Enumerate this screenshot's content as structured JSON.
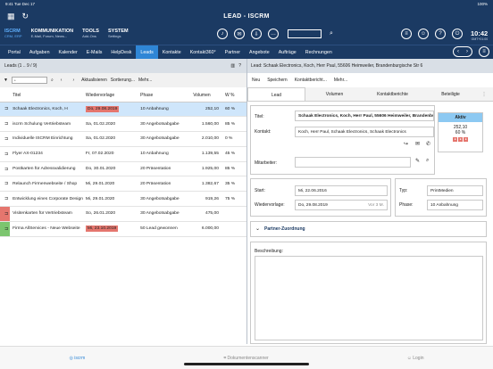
{
  "statusbar": {
    "time": "9:41",
    "date": "Tue Dec 17",
    "battery": "100%"
  },
  "app": {
    "title": "LEAD - ISCRM"
  },
  "modules": [
    {
      "name": "ISCRM",
      "sub": "CRM, ERP"
    },
    {
      "name": "KOMMUNIKATION",
      "sub": "E-Mail, Forum, News..."
    },
    {
      "name": "TOOLS",
      "sub": "Add-Ons"
    },
    {
      "name": "SYSTEM",
      "sub": "Settings"
    }
  ],
  "clock": {
    "time": "10:42",
    "zone": "GMT+01:00"
  },
  "nav": [
    "Portal",
    "Aufgaben",
    "Kalender",
    "E-Mails",
    "HelpDesk",
    "Leads",
    "Kontakte",
    "Kontakt360°",
    "Partner",
    "Angebote",
    "Aufträge",
    "Rechnungen"
  ],
  "nav_active": "Leads",
  "left": {
    "header": "Leads (1 .. 9 / 9)",
    "filter_value": "*",
    "toolbar": {
      "refresh": "Aktualisieren",
      "sort": "Sortierung...",
      "more": "Mehr..."
    },
    "columns": [
      "Titel",
      "Wiedervorlage",
      "Phase",
      "Volumen",
      "W %"
    ],
    "rows": [
      {
        "title": "Schaak Electronics, Koch, H",
        "date": "Do, 29.08.2019",
        "phase": "10 Anbahnung",
        "vol": "252,10",
        "w": "60 %"
      },
      {
        "title": "iscrm Schulung Vertriebsteam",
        "date": "Sa, 01.02.2020",
        "phase": "30 Angebotsabgabe",
        "vol": "1.560,00",
        "w": "85 %"
      },
      {
        "title": "Individuelle ISCRM Einrichtung",
        "date": "Sa, 01.02.2020",
        "phase": "30 Angebotsabgabe",
        "vol": "2.010,00",
        "w": "0 %"
      },
      {
        "title": "Flyer AX-01234",
        "date": "Fr, 07.02.2020",
        "phase": "10 Anbahnung",
        "vol": "1.139,55",
        "w": "45 %"
      },
      {
        "title": "Postkarten für Adressvalidierung",
        "date": "Do, 30.01.2020",
        "phase": "20 Präsentation",
        "vol": "1.925,00",
        "w": "85 %"
      },
      {
        "title": "Relaunch Firmenwebseite / Shop",
        "date": "Mi, 29.01.2020",
        "phase": "20 Präsentation",
        "vol": "1.382,67",
        "w": "35 %"
      },
      {
        "title": "Entwicklung eines Corporate Design",
        "date": "Mi, 29.01.2020",
        "phase": "30 Angebotsabgabe",
        "vol": "919,26",
        "w": "75 %"
      },
      {
        "title": "Visitenkarten für Vertriebsteam",
        "date": "So, 26.01.2020",
        "phase": "30 Angebotsabgabe",
        "vol": "475,00",
        "w": ""
      },
      {
        "title": "Firma AllServices - Neue Webseite",
        "date": "Mi, 23.10.2019",
        "phase": "50 Lead gewonnen",
        "vol": "6.000,00",
        "w": ""
      }
    ]
  },
  "right": {
    "header": "Lead: Schaak Electronics, Koch, Herr Paul, 55606 Heimweiler, Brandenburgische Str 6",
    "toolbar": {
      "new": "Neu",
      "save": "Speichern",
      "report": "Kontaktbericht...",
      "more": "Mehr..."
    },
    "tabs": [
      "Lead",
      "Volumen",
      "Kontaktberichte",
      "Beteiligte"
    ],
    "labels": {
      "title": "Titel:",
      "contact": "Kontakt:",
      "staff": "Mitarbeiter:",
      "start": "Start:",
      "followup": "Wiedervorlage:",
      "type": "Typ:",
      "phase": "Phase:",
      "partner": "Partner-Zuordnung",
      "desc": "Beschreibung:"
    },
    "values": {
      "title": "Schaak Electronics, Koch, Herr Paul, 55606 Heimweiler, Brandenburgische",
      "contact": "Koch, Herr Paul, Schaak Electronics, Schaak Electronics",
      "staff": "",
      "start": "Mi, 22.06.2016",
      "followup": "Do, 29.08.2019",
      "followup_hint": "Vor 3 M.",
      "type": "PrintMedien",
      "phase": "10 Anbahnung"
    },
    "status": {
      "label": "Aktiv",
      "value": "252,10",
      "percent": "60 %"
    }
  },
  "bottom": {
    "tab1": "iscrm",
    "tab2": "Dokumentenscanner",
    "tab3": "Login"
  }
}
